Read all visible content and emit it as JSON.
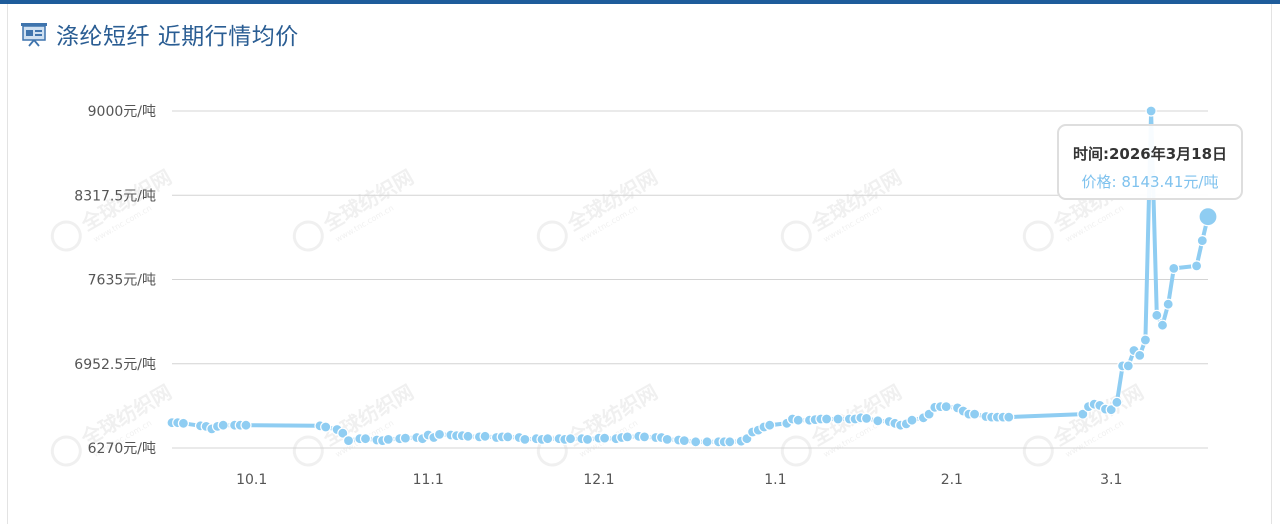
{
  "header": {
    "title": "涤纶短纤 近期行情均价",
    "icon": "presentation-board-icon"
  },
  "watermark": {
    "text": "全球纺织网",
    "subtext": "www.tnc.com.cn"
  },
  "tooltip": {
    "time_label": "时间:2026年3月18日",
    "price_label": "价格: 8143.41元/吨"
  },
  "colors": {
    "series": "#8fcdf2",
    "header_title": "#2a5d93",
    "top_bar": "#1e5c9b",
    "grid": "#d4d4d4"
  },
  "chart_data": {
    "type": "line",
    "title": "涤纶短纤 近期行情均价",
    "xlabel": "",
    "ylabel": "",
    "y_unit": "元/吨",
    "ylim": [
      6270,
      9000
    ],
    "y_ticks": [
      {
        "value": 6270,
        "label": "6270元/吨"
      },
      {
        "value": 6952.5,
        "label": "6952.5元/吨"
      },
      {
        "value": 7635,
        "label": "7635元/吨"
      },
      {
        "value": 8317.5,
        "label": "8317.5元/吨"
      },
      {
        "value": 9000,
        "label": "9000元/吨"
      }
    ],
    "x_range": [
      "2025-09-17",
      "2026-03-18"
    ],
    "x_ticks": [
      {
        "date": "2025-10-01",
        "label": "10.1"
      },
      {
        "date": "2025-11-01",
        "label": "11.1"
      },
      {
        "date": "2025-12-01",
        "label": "12.1"
      },
      {
        "date": "2026-01-01",
        "label": "1.1"
      },
      {
        "date": "2026-02-01",
        "label": "2.1"
      },
      {
        "date": "2026-03-01",
        "label": "3.1"
      }
    ],
    "grid": true,
    "legend": "none",
    "highlight": {
      "date": "2026-03-18",
      "value": 8143.41
    },
    "series": [
      {
        "name": "",
        "points": [
          [
            "2025-09-17",
            6475
          ],
          [
            "2025-09-18",
            6475
          ],
          [
            "2025-09-19",
            6470
          ],
          [
            "2025-09-22",
            6450
          ],
          [
            "2025-09-23",
            6445
          ],
          [
            "2025-09-24",
            6425
          ],
          [
            "2025-09-25",
            6445
          ],
          [
            "2025-09-26",
            6455
          ],
          [
            "2025-09-28",
            6455
          ],
          [
            "2025-09-29",
            6455
          ],
          [
            "2025-09-30",
            6455
          ],
          [
            "2025-10-13",
            6450
          ],
          [
            "2025-10-14",
            6440
          ],
          [
            "2025-10-16",
            6420
          ],
          [
            "2025-10-17",
            6390
          ],
          [
            "2025-10-18",
            6330
          ],
          [
            "2025-10-20",
            6345
          ],
          [
            "2025-10-21",
            6345
          ],
          [
            "2025-10-23",
            6335
          ],
          [
            "2025-10-24",
            6330
          ],
          [
            "2025-10-25",
            6340
          ],
          [
            "2025-10-27",
            6345
          ],
          [
            "2025-10-28",
            6350
          ],
          [
            "2025-10-30",
            6355
          ],
          [
            "2025-10-31",
            6345
          ],
          [
            "2025-11-01",
            6375
          ],
          [
            "2025-11-02",
            6355
          ],
          [
            "2025-11-03",
            6380
          ],
          [
            "2025-11-05",
            6375
          ],
          [
            "2025-11-06",
            6370
          ],
          [
            "2025-11-07",
            6370
          ],
          [
            "2025-11-08",
            6365
          ],
          [
            "2025-11-10",
            6360
          ],
          [
            "2025-11-11",
            6365
          ],
          [
            "2025-11-13",
            6355
          ],
          [
            "2025-11-14",
            6360
          ],
          [
            "2025-11-15",
            6360
          ],
          [
            "2025-11-17",
            6355
          ],
          [
            "2025-11-18",
            6340
          ],
          [
            "2025-11-20",
            6345
          ],
          [
            "2025-11-21",
            6340
          ],
          [
            "2025-11-22",
            6345
          ],
          [
            "2025-11-24",
            6345
          ],
          [
            "2025-11-25",
            6340
          ],
          [
            "2025-11-26",
            6345
          ],
          [
            "2025-11-28",
            6345
          ],
          [
            "2025-11-29",
            6340
          ],
          [
            "2025-12-01",
            6350
          ],
          [
            "2025-12-02",
            6350
          ],
          [
            "2025-12-04",
            6345
          ],
          [
            "2025-12-05",
            6355
          ],
          [
            "2025-12-06",
            6360
          ],
          [
            "2025-12-08",
            6365
          ],
          [
            "2025-12-09",
            6360
          ],
          [
            "2025-12-11",
            6355
          ],
          [
            "2025-12-12",
            6355
          ],
          [
            "2025-12-13",
            6340
          ],
          [
            "2025-12-15",
            6335
          ],
          [
            "2025-12-16",
            6330
          ],
          [
            "2025-12-18",
            6320
          ],
          [
            "2025-12-20",
            6320
          ],
          [
            "2025-12-22",
            6320
          ],
          [
            "2025-12-23",
            6320
          ],
          [
            "2025-12-24",
            6320
          ],
          [
            "2025-12-26",
            6325
          ],
          [
            "2025-12-27",
            6345
          ],
          [
            "2025-12-28",
            6400
          ],
          [
            "2025-12-29",
            6415
          ],
          [
            "2025-12-30",
            6440
          ],
          [
            "2025-12-31",
            6455
          ],
          [
            "2026-01-03",
            6470
          ],
          [
            "2026-01-04",
            6505
          ],
          [
            "2026-01-05",
            6495
          ],
          [
            "2026-01-07",
            6495
          ],
          [
            "2026-01-08",
            6500
          ],
          [
            "2026-01-09",
            6505
          ],
          [
            "2026-01-10",
            6505
          ],
          [
            "2026-01-12",
            6505
          ],
          [
            "2026-01-14",
            6505
          ],
          [
            "2026-01-15",
            6505
          ],
          [
            "2026-01-16",
            6515
          ],
          [
            "2026-01-17",
            6510
          ],
          [
            "2026-01-19",
            6490
          ],
          [
            "2026-01-21",
            6485
          ],
          [
            "2026-01-22",
            6470
          ],
          [
            "2026-01-23",
            6455
          ],
          [
            "2026-01-24",
            6465
          ],
          [
            "2026-01-25",
            6495
          ],
          [
            "2026-01-27",
            6515
          ],
          [
            "2026-01-28",
            6545
          ],
          [
            "2026-01-29",
            6600
          ],
          [
            "2026-01-30",
            6605
          ],
          [
            "2026-01-31",
            6605
          ],
          [
            "2026-02-02",
            6595
          ],
          [
            "2026-02-03",
            6570
          ],
          [
            "2026-02-04",
            6545
          ],
          [
            "2026-02-05",
            6545
          ],
          [
            "2026-02-07",
            6525
          ],
          [
            "2026-02-08",
            6520
          ],
          [
            "2026-02-09",
            6520
          ],
          [
            "2026-02-10",
            6520
          ],
          [
            "2026-02-11",
            6520
          ],
          [
            "2026-02-24",
            6545
          ],
          [
            "2026-02-25",
            6605
          ],
          [
            "2026-02-26",
            6625
          ],
          [
            "2026-02-27",
            6615
          ],
          [
            "2026-02-28",
            6585
          ],
          [
            "2026-03-01",
            6580
          ],
          [
            "2026-03-02",
            6640
          ],
          [
            "2026-03-03",
            6935
          ],
          [
            "2026-03-04",
            6935
          ],
          [
            "2026-03-05",
            7060
          ],
          [
            "2026-03-06",
            7020
          ],
          [
            "2026-03-07",
            7145
          ],
          [
            "2026-03-08",
            9000
          ],
          [
            "2026-03-09",
            7345
          ],
          [
            "2026-03-10",
            7265
          ],
          [
            "2026-03-11",
            7435
          ],
          [
            "2026-03-12",
            7725
          ],
          [
            "2026-03-16",
            7745
          ],
          [
            "2026-03-17",
            7950
          ],
          [
            "2026-03-18",
            8143.41
          ]
        ]
      }
    ]
  }
}
